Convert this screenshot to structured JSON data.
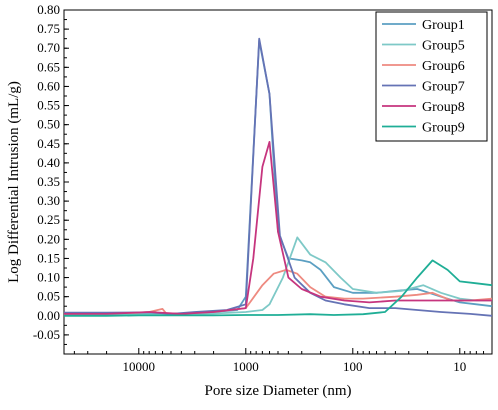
{
  "chart_data": {
    "type": "line",
    "xlabel": "Pore size Diameter (nm)",
    "ylabel": "Log Differential Intrusion (mL/g)",
    "x_scale": "log",
    "x_reversed": true,
    "xlim": [
      50000,
      5
    ],
    "ylim": [
      -0.1,
      0.8
    ],
    "x_ticks": [
      {
        "value": 10000,
        "label": "10000"
      },
      {
        "value": 1000,
        "label": "1000"
      },
      {
        "value": 100,
        "label": "100"
      },
      {
        "value": 10,
        "label": "10"
      }
    ],
    "y_ticks": [
      {
        "value": -0.05,
        "label": "-0.05"
      },
      {
        "value": 0.0,
        "label": "0.00"
      },
      {
        "value": 0.05,
        "label": "0.05"
      },
      {
        "value": 0.1,
        "label": "0.10"
      },
      {
        "value": 0.15,
        "label": "0.15"
      },
      {
        "value": 0.2,
        "label": "0.20"
      },
      {
        "value": 0.25,
        "label": "0.25"
      },
      {
        "value": 0.3,
        "label": "0.30"
      },
      {
        "value": 0.35,
        "label": "0.35"
      },
      {
        "value": 0.4,
        "label": "0.40"
      },
      {
        "value": 0.45,
        "label": "0.45"
      },
      {
        "value": 0.5,
        "label": "0.50"
      },
      {
        "value": 0.55,
        "label": "0.55"
      },
      {
        "value": 0.6,
        "label": "0.60"
      },
      {
        "value": 0.65,
        "label": "0.65"
      },
      {
        "value": 0.7,
        "label": "0.70"
      },
      {
        "value": 0.75,
        "label": "0.75"
      },
      {
        "value": 0.8,
        "label": "0.80"
      }
    ],
    "grid": false,
    "legend_position": "top-right",
    "series": [
      {
        "name": "Group1",
        "color": "#5b9fc2",
        "points": [
          [
            50000,
            0.005
          ],
          [
            20000,
            0.005
          ],
          [
            8000,
            0.006
          ],
          [
            4000,
            0.006
          ],
          [
            2000,
            0.01
          ],
          [
            1200,
            0.015
          ],
          [
            1000,
            0.05
          ],
          [
            750,
            0.72
          ],
          [
            600,
            0.58
          ],
          [
            500,
            0.22
          ],
          [
            400,
            0.15
          ],
          [
            300,
            0.145
          ],
          [
            250,
            0.14
          ],
          [
            200,
            0.12
          ],
          [
            150,
            0.075
          ],
          [
            100,
            0.06
          ],
          [
            60,
            0.06
          ],
          [
            40,
            0.065
          ],
          [
            25,
            0.07
          ],
          [
            15,
            0.05
          ],
          [
            10,
            0.035
          ],
          [
            7,
            0.03
          ],
          [
            5,
            0.025
          ]
        ]
      },
      {
        "name": "Group5",
        "color": "#7ec9c7",
        "points": [
          [
            50000,
            0.003
          ],
          [
            20000,
            0.004
          ],
          [
            8000,
            0.005
          ],
          [
            4000,
            0.005
          ],
          [
            2000,
            0.006
          ],
          [
            1000,
            0.01
          ],
          [
            700,
            0.015
          ],
          [
            600,
            0.03
          ],
          [
            450,
            0.1
          ],
          [
            330,
            0.205
          ],
          [
            250,
            0.16
          ],
          [
            180,
            0.14
          ],
          [
            130,
            0.1
          ],
          [
            100,
            0.07
          ],
          [
            60,
            0.06
          ],
          [
            35,
            0.065
          ],
          [
            22,
            0.08
          ],
          [
            15,
            0.06
          ],
          [
            10,
            0.045
          ],
          [
            7,
            0.04
          ],
          [
            5,
            0.04
          ]
        ]
      },
      {
        "name": "Group6",
        "color": "#ee8a80",
        "points": [
          [
            50000,
            0.005
          ],
          [
            20000,
            0.006
          ],
          [
            10000,
            0.008
          ],
          [
            8000,
            0.01
          ],
          [
            6000,
            0.018
          ],
          [
            5500,
            0.005
          ],
          [
            4000,
            0.006
          ],
          [
            2000,
            0.01
          ],
          [
            1000,
            0.02
          ],
          [
            700,
            0.08
          ],
          [
            550,
            0.11
          ],
          [
            420,
            0.12
          ],
          [
            330,
            0.11
          ],
          [
            250,
            0.075
          ],
          [
            180,
            0.05
          ],
          [
            120,
            0.045
          ],
          [
            80,
            0.045
          ],
          [
            40,
            0.05
          ],
          [
            25,
            0.055
          ],
          [
            18,
            0.06
          ],
          [
            12,
            0.04
          ],
          [
            8,
            0.04
          ],
          [
            5,
            0.045
          ]
        ]
      },
      {
        "name": "Group7",
        "color": "#6573b5",
        "points": [
          [
            50000,
            0.008
          ],
          [
            20000,
            0.008
          ],
          [
            8000,
            0.009
          ],
          [
            5000,
            0.005
          ],
          [
            3000,
            0.01
          ],
          [
            1500,
            0.015
          ],
          [
            1000,
            0.03
          ],
          [
            750,
            0.725
          ],
          [
            600,
            0.58
          ],
          [
            480,
            0.21
          ],
          [
            350,
            0.1
          ],
          [
            250,
            0.06
          ],
          [
            180,
            0.04
          ],
          [
            120,
            0.03
          ],
          [
            70,
            0.02
          ],
          [
            40,
            0.02
          ],
          [
            25,
            0.015
          ],
          [
            15,
            0.01
          ],
          [
            8,
            0.005
          ],
          [
            5,
            0.0
          ]
        ]
      },
      {
        "name": "Group8",
        "color": "#c6357e",
        "points": [
          [
            50000,
            0.005
          ],
          [
            20000,
            0.005
          ],
          [
            8000,
            0.01
          ],
          [
            4000,
            0.005
          ],
          [
            2000,
            0.01
          ],
          [
            1000,
            0.02
          ],
          [
            850,
            0.15
          ],
          [
            700,
            0.39
          ],
          [
            600,
            0.455
          ],
          [
            500,
            0.22
          ],
          [
            400,
            0.1
          ],
          [
            300,
            0.07
          ],
          [
            200,
            0.05
          ],
          [
            120,
            0.04
          ],
          [
            70,
            0.035
          ],
          [
            40,
            0.04
          ],
          [
            20,
            0.04
          ],
          [
            10,
            0.04
          ],
          [
            5,
            0.04
          ]
        ]
      },
      {
        "name": "Group9",
        "color": "#1fae96",
        "points": [
          [
            50000,
            0.0
          ],
          [
            20000,
            0.0
          ],
          [
            10000,
            0.001
          ],
          [
            5000,
            0.001
          ],
          [
            2000,
            0.001
          ],
          [
            1000,
            0.002
          ],
          [
            500,
            0.002
          ],
          [
            250,
            0.004
          ],
          [
            150,
            0.002
          ],
          [
            80,
            0.004
          ],
          [
            50,
            0.01
          ],
          [
            35,
            0.05
          ],
          [
            25,
            0.1
          ],
          [
            18,
            0.145
          ],
          [
            13,
            0.12
          ],
          [
            10,
            0.09
          ],
          [
            7,
            0.085
          ],
          [
            5,
            0.08
          ]
        ]
      }
    ]
  }
}
